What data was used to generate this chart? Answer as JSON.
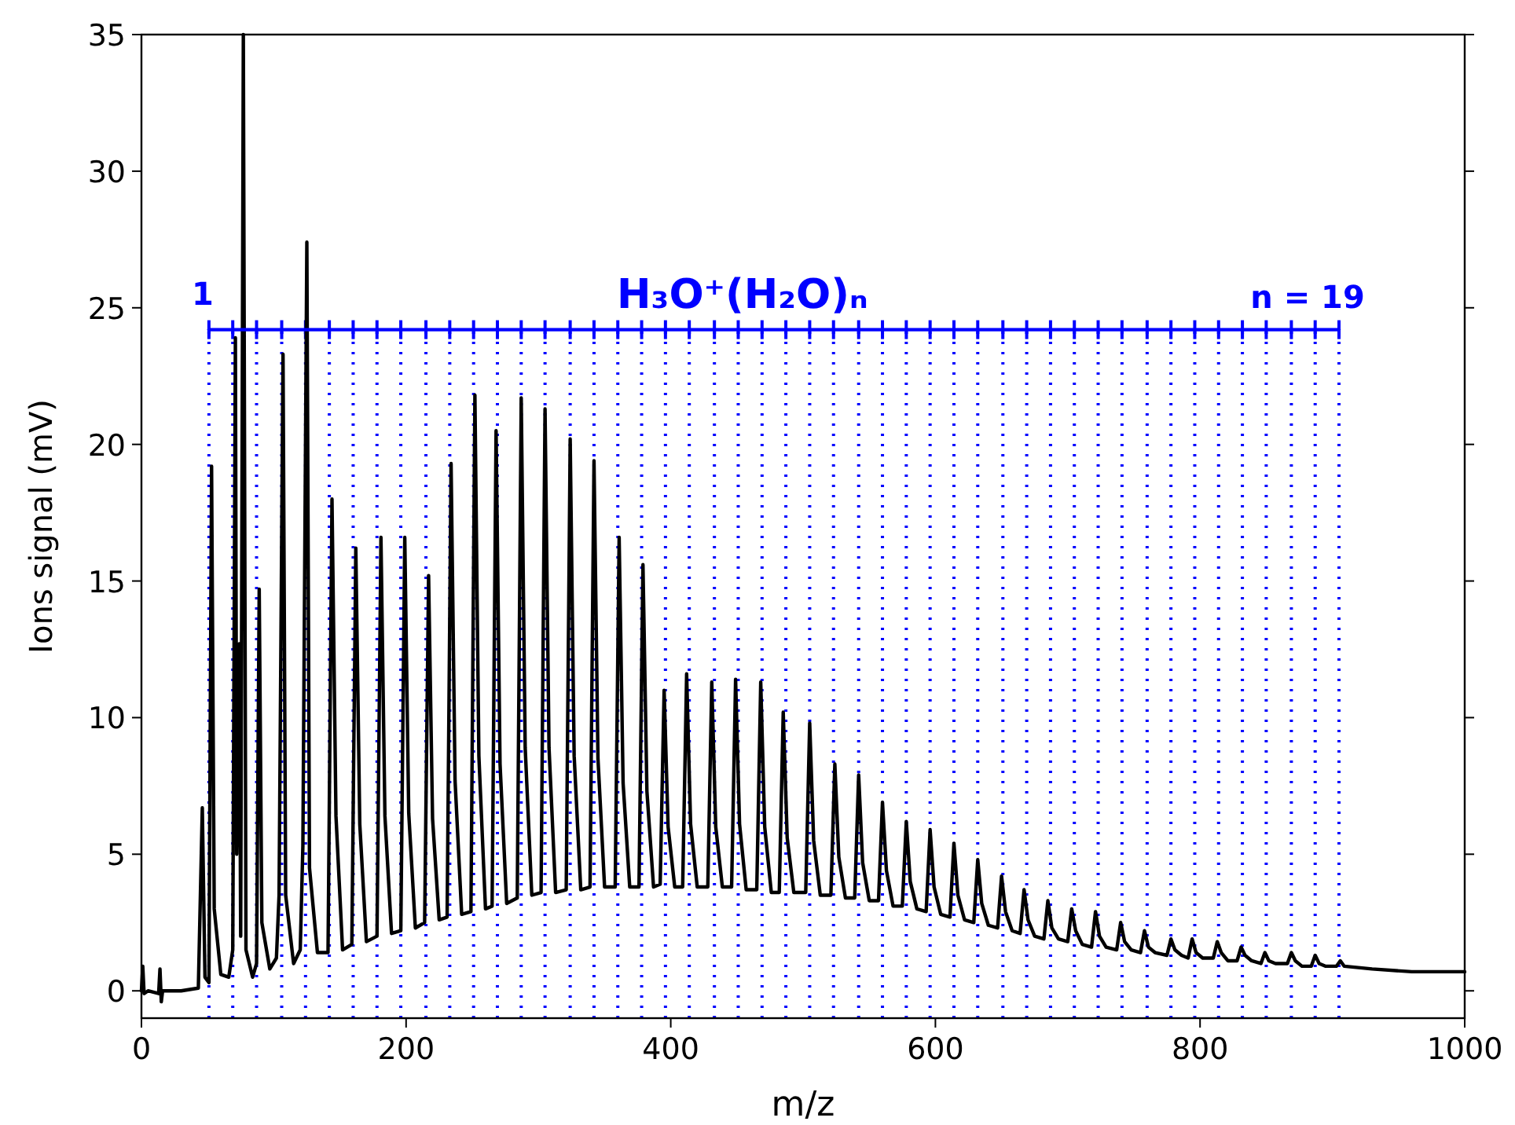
{
  "chart_data": {
    "type": "line",
    "xlabel": "m/z",
    "ylabel": "Ions signal (mV)",
    "xlim": [
      0,
      1000
    ],
    "ylim": [
      -1,
      35
    ],
    "xticks": [
      0,
      200,
      400,
      600,
      800,
      1000
    ],
    "yticks": [
      0,
      5,
      10,
      15,
      20,
      25,
      30,
      35
    ],
    "grid": false,
    "marker": "none",
    "series": [
      {
        "color": "#000000",
        "line_style": "solid",
        "x": [
          0,
          1,
          2,
          5,
          13,
          14,
          15,
          16,
          30,
          43,
          46,
          48,
          51,
          53,
          55,
          60,
          66,
          69,
          71,
          72,
          74,
          75,
          77,
          79,
          84,
          87,
          89,
          91,
          97,
          102,
          104,
          107,
          109,
          115,
          120,
          122,
          125,
          127,
          133,
          141,
          144,
          147,
          152,
          159,
          162,
          165,
          170,
          178,
          181,
          184,
          189,
          196,
          199,
          202,
          207,
          214,
          217,
          220,
          225,
          231,
          234,
          237,
          242,
          249,
          252,
          255,
          260,
          265,
          268,
          271,
          276,
          284,
          287,
          290,
          295,
          302,
          305,
          308,
          313,
          321,
          324,
          327,
          332,
          339,
          342,
          345,
          350,
          358,
          361,
          364,
          369,
          376,
          379,
          382,
          387,
          392,
          395,
          398,
          403,
          409,
          412,
          415,
          420,
          428,
          431,
          434,
          439,
          446,
          449,
          452,
          457,
          465,
          468,
          471,
          476,
          482,
          485,
          488,
          493,
          502,
          505,
          508,
          513,
          521,
          524,
          527,
          532,
          539,
          542,
          545,
          550,
          557,
          560,
          563,
          568,
          575,
          578,
          581,
          586,
          593,
          596,
          599,
          604,
          611,
          614,
          617,
          622,
          629,
          632,
          635,
          640,
          647,
          650,
          653,
          658,
          664,
          667,
          670,
          675,
          682,
          685,
          688,
          693,
          700,
          703,
          706,
          711,
          718,
          721,
          724,
          729,
          737,
          740,
          743,
          748,
          755,
          758,
          761,
          766,
          775,
          778,
          781,
          786,
          791,
          794,
          797,
          802,
          810,
          813,
          816,
          821,
          828,
          831,
          834,
          839,
          846,
          849,
          852,
          857,
          866,
          869,
          872,
          877,
          884,
          887,
          890,
          895,
          903,
          906,
          909,
          930,
          960,
          1000
        ],
        "values": [
          0.0,
          0.9,
          -0.1,
          0.0,
          -0.1,
          0.8,
          -0.4,
          0.0,
          0.0,
          0.1,
          6.7,
          0.5,
          0.3,
          19.2,
          3.0,
          0.6,
          0.5,
          1.5,
          23.9,
          5.0,
          12.7,
          2.0,
          35,
          1.5,
          0.5,
          1.0,
          14.7,
          2.5,
          0.8,
          1.2,
          3.5,
          23.3,
          3.5,
          1.0,
          1.5,
          5.3,
          27.4,
          4.5,
          1.4,
          1.4,
          18.0,
          6.4,
          1.5,
          1.7,
          16.2,
          6.1,
          1.8,
          2.0,
          16.6,
          6.4,
          2.1,
          2.2,
          16.6,
          6.5,
          2.3,
          2.5,
          15.2,
          6.3,
          2.6,
          2.7,
          19.3,
          7.7,
          2.8,
          2.9,
          21.8,
          8.6,
          3.0,
          3.1,
          20.5,
          8.3,
          3.2,
          3.4,
          21.7,
          8.9,
          3.5,
          3.6,
          21.3,
          8.9,
          3.6,
          3.7,
          20.2,
          8.6,
          3.7,
          3.8,
          19.4,
          8.5,
          3.8,
          3.8,
          16.6,
          7.6,
          3.8,
          3.8,
          15.6,
          7.3,
          3.8,
          3.9,
          11.0,
          6.0,
          3.8,
          3.8,
          11.6,
          6.1,
          3.8,
          3.8,
          11.3,
          6.0,
          3.8,
          3.8,
          11.4,
          6.1,
          3.7,
          3.7,
          11.3,
          6.0,
          3.6,
          3.6,
          10.2,
          5.6,
          3.6,
          3.6,
          9.8,
          5.5,
          3.5,
          3.5,
          8.3,
          4.9,
          3.4,
          3.4,
          7.9,
          4.7,
          3.3,
          3.3,
          6.9,
          4.4,
          3.1,
          3.1,
          6.2,
          4.0,
          3.0,
          2.9,
          5.9,
          3.8,
          2.8,
          2.7,
          5.4,
          3.5,
          2.6,
          2.5,
          4.8,
          3.2,
          2.4,
          2.3,
          4.2,
          2.9,
          2.2,
          2.1,
          3.7,
          2.6,
          2.0,
          1.9,
          3.3,
          2.3,
          1.9,
          1.8,
          3.0,
          2.2,
          1.7,
          1.6,
          2.9,
          2.0,
          1.6,
          1.5,
          2.5,
          1.8,
          1.5,
          1.4,
          2.2,
          1.6,
          1.4,
          1.3,
          1.9,
          1.5,
          1.3,
          1.2,
          1.9,
          1.4,
          1.2,
          1.2,
          1.8,
          1.4,
          1.1,
          1.1,
          1.6,
          1.3,
          1.1,
          1.0,
          1.4,
          1.1,
          1.0,
          1.0,
          1.4,
          1.1,
          0.9,
          0.9,
          1.3,
          1.0,
          0.9,
          0.9,
          1.1,
          0.9,
          0.8,
          0.7,
          0.7
        ]
      },
      {
        "color": "#0000ff",
        "line_style": "solid",
        "x": [
          51,
          905
        ],
        "values": [
          24.2,
          24.2
        ]
      }
    ],
    "ref_lines": [
      {
        "axis": "x",
        "value": 51,
        "color": "#0000ff",
        "line_style": "dotted"
      },
      {
        "axis": "x",
        "value": 69,
        "color": "#0000ff",
        "line_style": "dotted"
      },
      {
        "axis": "x",
        "value": 87,
        "color": "#0000ff",
        "line_style": "dotted"
      },
      {
        "axis": "x",
        "value": 106,
        "color": "#0000ff",
        "line_style": "dotted"
      },
      {
        "axis": "x",
        "value": 124,
        "color": "#0000ff",
        "line_style": "dotted"
      },
      {
        "axis": "x",
        "value": 142,
        "color": "#0000ff",
        "line_style": "dotted"
      },
      {
        "axis": "x",
        "value": 160,
        "color": "#0000ff",
        "line_style": "dotted"
      },
      {
        "axis": "x",
        "value": 178,
        "color": "#0000ff",
        "line_style": "dotted"
      },
      {
        "axis": "x",
        "value": 196,
        "color": "#0000ff",
        "line_style": "dotted"
      },
      {
        "axis": "x",
        "value": 215,
        "color": "#0000ff",
        "line_style": "dotted"
      },
      {
        "axis": "x",
        "value": 233,
        "color": "#0000ff",
        "line_style": "dotted"
      },
      {
        "axis": "x",
        "value": 251,
        "color": "#0000ff",
        "line_style": "dotted"
      },
      {
        "axis": "x",
        "value": 269,
        "color": "#0000ff",
        "line_style": "dotted"
      },
      {
        "axis": "x",
        "value": 287,
        "color": "#0000ff",
        "line_style": "dotted"
      },
      {
        "axis": "x",
        "value": 305,
        "color": "#0000ff",
        "line_style": "dotted"
      },
      {
        "axis": "x",
        "value": 324,
        "color": "#0000ff",
        "line_style": "dotted"
      },
      {
        "axis": "x",
        "value": 342,
        "color": "#0000ff",
        "line_style": "dotted"
      },
      {
        "axis": "x",
        "value": 360,
        "color": "#0000ff",
        "line_style": "dotted"
      },
      {
        "axis": "x",
        "value": 378,
        "color": "#0000ff",
        "line_style": "dotted"
      },
      {
        "axis": "x",
        "value": 396,
        "color": "#0000ff",
        "line_style": "dotted"
      },
      {
        "axis": "x",
        "value": 414,
        "color": "#0000ff",
        "line_style": "dotted"
      },
      {
        "axis": "x",
        "value": 433,
        "color": "#0000ff",
        "line_style": "dotted"
      },
      {
        "axis": "x",
        "value": 451,
        "color": "#0000ff",
        "line_style": "dotted"
      },
      {
        "axis": "x",
        "value": 469,
        "color": "#0000ff",
        "line_style": "dotted"
      },
      {
        "axis": "x",
        "value": 487,
        "color": "#0000ff",
        "line_style": "dotted"
      },
      {
        "axis": "x",
        "value": 505,
        "color": "#0000ff",
        "line_style": "dotted"
      },
      {
        "axis": "x",
        "value": 523,
        "color": "#0000ff",
        "line_style": "dotted"
      },
      {
        "axis": "x",
        "value": 542,
        "color": "#0000ff",
        "line_style": "dotted"
      },
      {
        "axis": "x",
        "value": 560,
        "color": "#0000ff",
        "line_style": "dotted"
      },
      {
        "axis": "x",
        "value": 578,
        "color": "#0000ff",
        "line_style": "dotted"
      },
      {
        "axis": "x",
        "value": 596,
        "color": "#0000ff",
        "line_style": "dotted"
      },
      {
        "axis": "x",
        "value": 614,
        "color": "#0000ff",
        "line_style": "dotted"
      },
      {
        "axis": "x",
        "value": 632,
        "color": "#0000ff",
        "line_style": "dotted"
      },
      {
        "axis": "x",
        "value": 651,
        "color": "#0000ff",
        "line_style": "dotted"
      },
      {
        "axis": "x",
        "value": 669,
        "color": "#0000ff",
        "line_style": "dotted"
      },
      {
        "axis": "x",
        "value": 687,
        "color": "#0000ff",
        "line_style": "dotted"
      },
      {
        "axis": "x",
        "value": 705,
        "color": "#0000ff",
        "line_style": "dotted"
      },
      {
        "axis": "x",
        "value": 723,
        "color": "#0000ff",
        "line_style": "dotted"
      },
      {
        "axis": "x",
        "value": 741,
        "color": "#0000ff",
        "line_style": "dotted"
      },
      {
        "axis": "x",
        "value": 760,
        "color": "#0000ff",
        "line_style": "dotted"
      },
      {
        "axis": "x",
        "value": 778,
        "color": "#0000ff",
        "line_style": "dotted"
      },
      {
        "axis": "x",
        "value": 796,
        "color": "#0000ff",
        "line_style": "dotted"
      },
      {
        "axis": "x",
        "value": 814,
        "color": "#0000ff",
        "line_style": "dotted"
      },
      {
        "axis": "x",
        "value": 832,
        "color": "#0000ff",
        "line_style": "dotted"
      },
      {
        "axis": "x",
        "value": 850,
        "color": "#0000ff",
        "line_style": "dotted"
      },
      {
        "axis": "x",
        "value": 869,
        "color": "#0000ff",
        "line_style": "dotted"
      },
      {
        "axis": "x",
        "value": 887,
        "color": "#0000ff",
        "line_style": "dotted"
      },
      {
        "axis": "x",
        "value": 905,
        "color": "#0000ff",
        "line_style": "dotted"
      }
    ],
    "annotations": [
      "1",
      "H₃O⁺(H₂O)ₙ",
      "n = 19"
    ]
  }
}
